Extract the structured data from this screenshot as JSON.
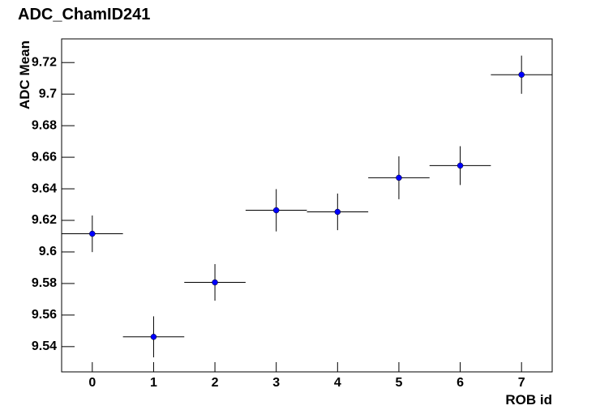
{
  "chart_data": {
    "type": "errorbar",
    "title": "ADC_ChamID241",
    "x_label": "ROB id",
    "y_label": "ADC Mean",
    "x": [
      0,
      1,
      2,
      3,
      4,
      5,
      6,
      7
    ],
    "values": [
      9.6115,
      9.5462,
      9.5807,
      9.6264,
      9.6254,
      9.647,
      9.6547,
      9.7123
    ],
    "yerr": [
      0.0116,
      0.013,
      0.0116,
      0.0134,
      0.0116,
      0.0136,
      0.0123,
      0.0121
    ],
    "xerr": [
      0.5,
      0.5,
      0.5,
      0.5,
      0.5,
      0.5,
      0.5,
      0.5
    ],
    "color": "#0000ff",
    "errorbar_color": "#000000",
    "xlim": [
      -0.5,
      7.5
    ],
    "ylim": [
      9.524,
      9.735
    ],
    "xticks": [
      0,
      1,
      2,
      3,
      4,
      5,
      6,
      7
    ],
    "yticks": [
      9.54,
      9.56,
      9.58,
      9.6,
      9.62,
      9.64,
      9.66,
      9.68,
      9.7,
      9.72
    ]
  }
}
